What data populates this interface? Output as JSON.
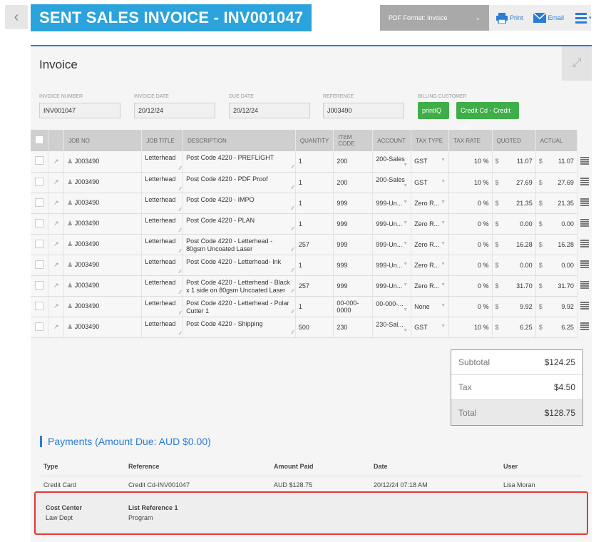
{
  "header": {
    "back_icon": "chevron-left-icon",
    "title": "SENT SALES INVOICE - INV001047",
    "pdf_format": "PDF Format: Invoice",
    "print_label": "Print",
    "email_label": "Email"
  },
  "panel": {
    "title": "Invoice"
  },
  "fields": {
    "invoice_number_label": "INVOICE NUMBER",
    "invoice_number": "INV001047",
    "invoice_date_label": "INVOICE DATE",
    "invoice_date": "20/12/24",
    "due_date_label": "DUE DATE",
    "due_date": "20/12/24",
    "reference_label": "REFERENCE",
    "reference": "J003490",
    "billing_customer_label": "BILLING CUSTOMER",
    "billing_btn1": "printIQ",
    "billing_btn2": "Credit Cd - Credit Cd"
  },
  "columns": [
    "JOB NO",
    "JOB TITLE",
    "DESCRIPTION",
    "QUANTITY",
    "ITEM CODE",
    "ACCOUNT",
    "TAX TYPE",
    "TAX RATE",
    "QUOTED",
    "ACTUAL"
  ],
  "rows": [
    {
      "job": "J003490",
      "title": "Letterhead",
      "desc": "Post Code 4220 - PREFLIGHT",
      "qty": "1",
      "code": "200",
      "account": "200-Sales",
      "tax": "GST",
      "rate": "10 %",
      "quoted": "11.07",
      "actual": "11.07"
    },
    {
      "job": "J003490",
      "title": "Letterhead",
      "desc": "Post Code 4220 - PDF Proof",
      "qty": "1",
      "code": "200",
      "account": "200-Sales",
      "tax": "GST",
      "rate": "10 %",
      "quoted": "27.69",
      "actual": "27.69"
    },
    {
      "job": "J003490",
      "title": "Letterhead",
      "desc": "Post Code 4220 - IMPO",
      "qty": "1",
      "code": "999",
      "account": "999-Un...",
      "tax": "Zero R...",
      "rate": "0 %",
      "quoted": "21.35",
      "actual": "21.35"
    },
    {
      "job": "J003490",
      "title": "Letterhead",
      "desc": "Post Code 4220 - PLAN",
      "qty": "1",
      "code": "999",
      "account": "999-Un...",
      "tax": "Zero R...",
      "rate": "0 %",
      "quoted": "0.00",
      "actual": "0.00"
    },
    {
      "job": "J003490",
      "title": "Letterhead",
      "desc": "Post Code 4220 - Letterhead - 80gsm Uncoated Laser",
      "qty": "257",
      "code": "999",
      "account": "999-Un...",
      "tax": "Zero R...",
      "rate": "0 %",
      "quoted": "16.28",
      "actual": "16.28"
    },
    {
      "job": "J003490",
      "title": "Letterhead",
      "desc": "Post Code 4220 - Letterhead- Ink",
      "qty": "1",
      "code": "999",
      "account": "999-Un...",
      "tax": "Zero R...",
      "rate": "0 %",
      "quoted": "0.00",
      "actual": "0.00"
    },
    {
      "job": "J003490",
      "title": "Letterhead",
      "desc": "Post Code 4220 - Letterhead - Black x 1 side on 80gsm Uncoated Laser",
      "qty": "257",
      "code": "999",
      "account": "999-Un...",
      "tax": "Zero R...",
      "rate": "0 %",
      "quoted": "31.70",
      "actual": "31.70"
    },
    {
      "job": "J003490",
      "title": "Letterhead",
      "desc": "Post Code 4220 - Letterhead - Polar Cutter 1",
      "qty": "1",
      "code": "00-000-0000",
      "account": "00-000-...",
      "tax": "None",
      "rate": "0 %",
      "quoted": "9.92",
      "actual": "9.92"
    },
    {
      "job": "J003490",
      "title": "Letterhead",
      "desc": "Post Code 4220 - Shipping",
      "qty": "500",
      "code": "230",
      "account": "230-Sal...",
      "tax": "GST",
      "rate": "10 %",
      "quoted": "6.25",
      "actual": "6.25"
    }
  ],
  "currency": "$",
  "totals": {
    "subtotal_label": "Subtotal",
    "subtotal": "$124.25",
    "tax_label": "Tax",
    "tax": "$4.50",
    "total_label": "Total",
    "total": "$128.75"
  },
  "payments": {
    "title": "Payments (Amount Due: AUD $0.00)",
    "headers": [
      "Type",
      "Reference",
      "Amount Paid",
      "Date",
      "User"
    ],
    "row": {
      "type": "Credit Card",
      "reference": "Credit Cd-INV001047",
      "amount": "AUD $128.75",
      "date": "20/12/24 07:18 AM",
      "user": "Lisa Moran"
    }
  },
  "cost_center": {
    "label1": "Cost Center",
    "value1": "Law Dept",
    "label2": "List Reference 1",
    "value2": "Program"
  },
  "colors": {
    "accent": "#2ba3dc",
    "link": "#2b7cd3",
    "green": "#3fae49",
    "highlight": "#e53935"
  }
}
